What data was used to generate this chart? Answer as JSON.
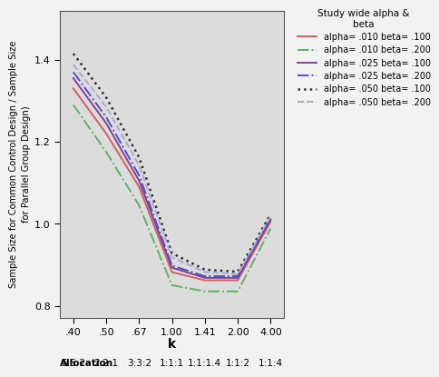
{
  "x": [
    0.4,
    0.5,
    0.67,
    1.0,
    1.41,
    2.0,
    4.0
  ],
  "xtick_labels": [
    ".40",
    ".50",
    ".67",
    "1.00",
    "1.41",
    "2.00",
    "4.00"
  ],
  "series": [
    {
      "label": "alpha= .010 beta= .100",
      "color": "#d06060",
      "linestyle": "solid",
      "linewidth": 1.4,
      "values": [
        1.33,
        1.22,
        1.09,
        0.882,
        0.862,
        0.862,
        1.005
      ]
    },
    {
      "label": "alpha= .010 beta= .200",
      "color": "#60b060",
      "linestyle": "dashdot",
      "linewidth": 1.4,
      "values": [
        1.29,
        1.175,
        1.045,
        0.85,
        0.835,
        0.835,
        0.988
      ]
    },
    {
      "label": "alpha= .025 beta= .100",
      "color": "#8040a0",
      "linestyle": "solid",
      "linewidth": 1.4,
      "values": [
        1.355,
        1.245,
        1.105,
        0.893,
        0.868,
        0.868,
        1.01
      ]
    },
    {
      "label": "alpha= .025 beta= .200",
      "color": "#5050bb",
      "linestyle": "dashdot",
      "linewidth": 1.4,
      "values": [
        1.37,
        1.26,
        1.118,
        0.898,
        0.872,
        0.872,
        1.013
      ]
    },
    {
      "label": "alpha= .050 beta= .100",
      "color": "#303030",
      "linestyle": "dotted",
      "linewidth": 1.8,
      "values": [
        1.415,
        1.308,
        1.162,
        0.928,
        0.888,
        0.883,
        1.023
      ]
    },
    {
      "label": "alpha= .050 beta= .200",
      "color": "#aaaacc",
      "linestyle": "dashed",
      "linewidth": 1.4,
      "values": [
        1.388,
        1.285,
        1.142,
        0.918,
        0.882,
        0.877,
        1.018
      ]
    }
  ],
  "ylabel": "Sample Size for Common Control Design / Sample Size\nfor Parallel Group Design)",
  "xlabel": "k",
  "legend_title": "Study wide alpha &\nbeta",
  "yticks": [
    0.8,
    1.0,
    1.2,
    1.4
  ],
  "ylim": [
    0.77,
    1.52
  ],
  "bg_color": "#dcdcdc",
  "fig_bg_color": "#f2f2f2",
  "allocation_items": [
    "Allocation",
    "5:5:2",
    "2:2:1",
    "3:3:2",
    "1:1:1",
    "1:1:1.4",
    "1:1:2",
    "1:1:4"
  ]
}
